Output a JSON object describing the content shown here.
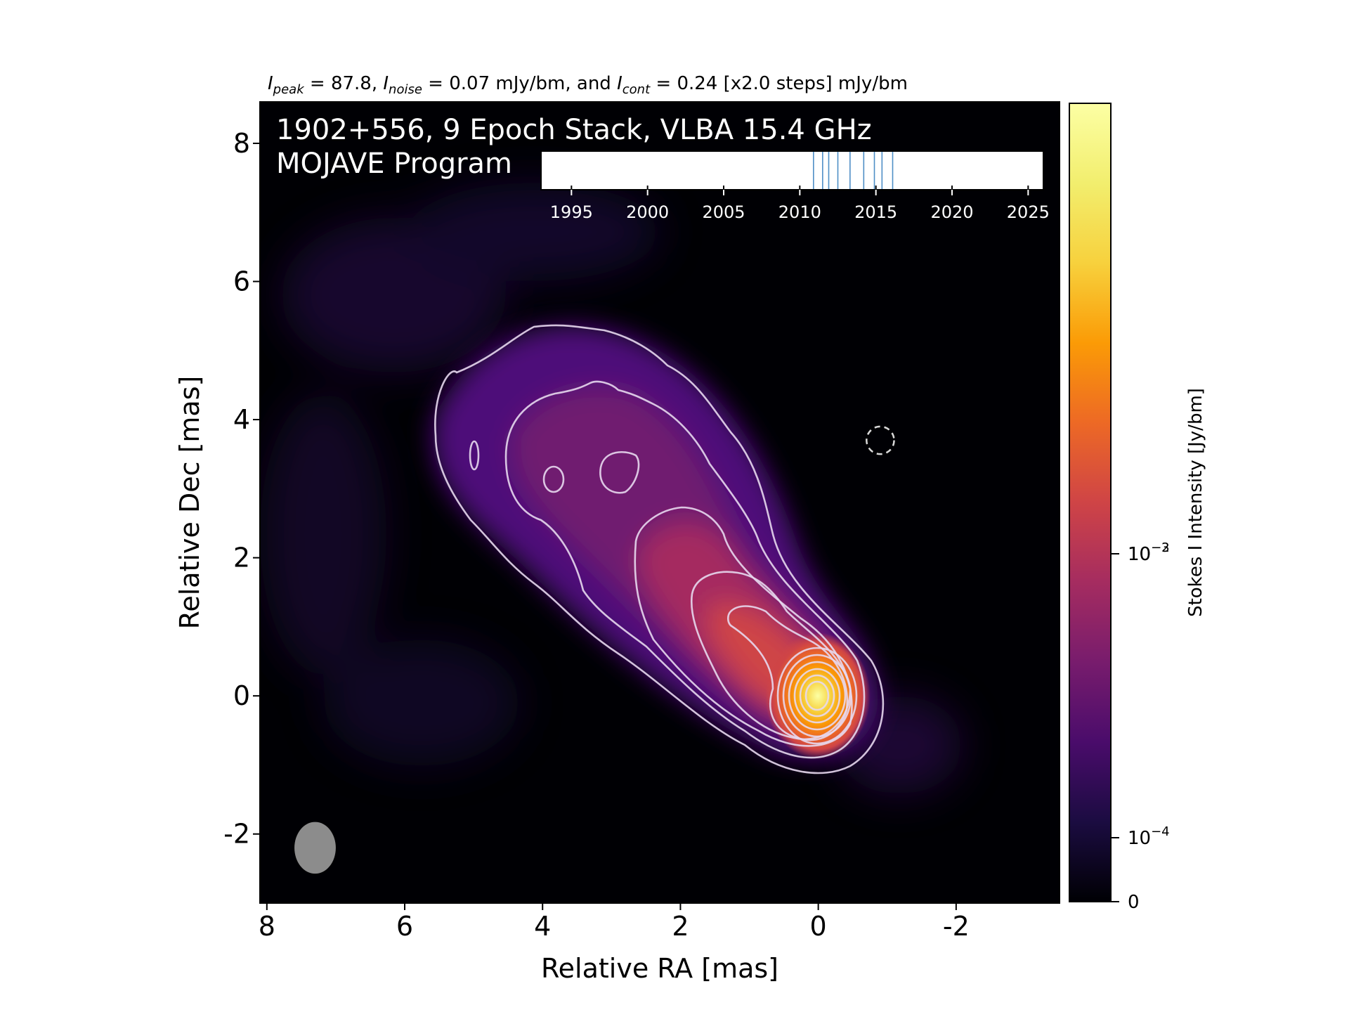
{
  "chart_data": {
    "type": "heatmap",
    "header": {
      "peak_symbol": "I",
      "peak_sub": "peak",
      "peak_text": " = 87.8, ",
      "noise_symbol": "I",
      "noise_sub": "noise",
      "noise_text": " = 0.07 mJy/bm, and ",
      "cont_symbol": "I",
      "cont_sub": "cont",
      "cont_text": " = 0.24 [x2.0 steps] mJy/bm"
    },
    "title_line1": "1902+556, 9 Epoch Stack, VLBA 15.4 GHz",
    "title_line2": "MOJAVE Program",
    "xlabel": "Relative RA [mas]",
    "ylabel": "Relative Dec [mas]",
    "xlim": [
      8.1,
      -3.5
    ],
    "ylim": [
      -3.0,
      8.6
    ],
    "xticks": [
      8,
      6,
      4,
      2,
      0,
      -2
    ],
    "xtick_labels": [
      "8",
      "6",
      "4",
      "2",
      "0",
      "-2"
    ],
    "yticks": [
      -2,
      0,
      2,
      4,
      6,
      8
    ],
    "ytick_labels": [
      "-2",
      "0",
      "2",
      "4",
      "6",
      "8"
    ],
    "colormap": "inferno",
    "colorbar": {
      "label": "Stokes I Intensity [Jy/bm]",
      "scale": "log",
      "ticks": [
        {
          "value": 0.01,
          "base": "10",
          "exp": "−2"
        },
        {
          "value": 0.001,
          "base": "10",
          "exp": "−3"
        },
        {
          "value": 0.0001,
          "base": "10",
          "exp": "−4"
        },
        {
          "value": 0,
          "base": "0",
          "exp": ""
        }
      ]
    },
    "contour_base_mJy": 0.24,
    "contour_step_factor": 2.0,
    "epoch_timeline": {
      "xlim": [
        1993,
        2026
      ],
      "ticks": [
        1995,
        2000,
        2005,
        2010,
        2015,
        2020,
        2025
      ],
      "tick_labels": [
        "1995",
        "2000",
        "2005",
        "2010",
        "2015",
        "2020",
        "2025"
      ],
      "epochs": [
        2010.9,
        2011.5,
        2011.9,
        2012.5,
        2013.3,
        2014.2,
        2014.9,
        2015.4,
        2016.1
      ],
      "epoch_color": "#4f8fc6"
    },
    "beam_ellipse": {
      "x": 7.3,
      "y": -2.2,
      "major_mas": 0.75,
      "minor_mas": 0.6,
      "color": "#8c8c8c"
    },
    "marker_circle": {
      "x": -0.9,
      "y": 3.7,
      "radius_mas": 0.2,
      "style": "dashed"
    }
  }
}
